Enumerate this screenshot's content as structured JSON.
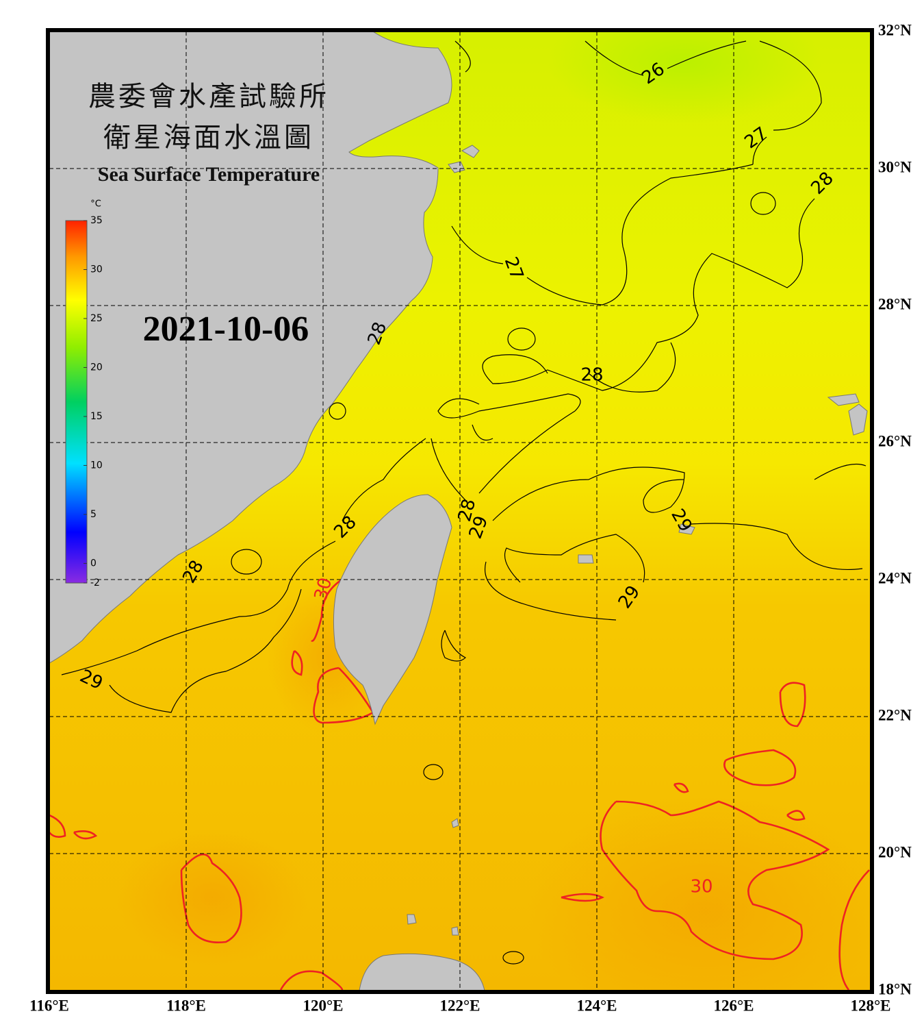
{
  "title": {
    "line1": "農委會水產試驗所",
    "line2": "衛星海面水溫圖",
    "english": "Sea Surface Temperature"
  },
  "date": "2021-10-06",
  "colorbar": {
    "unit": "°C",
    "range": [
      -2,
      35
    ],
    "ticks": [
      -2,
      0,
      5,
      10,
      15,
      20,
      25,
      30,
      35
    ]
  },
  "map": {
    "lon_range": [
      116,
      128
    ],
    "lat_range": [
      18,
      32
    ],
    "lon_ticks": [
      {
        "value": 116,
        "label": "116°E"
      },
      {
        "value": 118,
        "label": "118°E"
      },
      {
        "value": 120,
        "label": "120°E"
      },
      {
        "value": 122,
        "label": "122°E"
      },
      {
        "value": 124,
        "label": "124°E"
      },
      {
        "value": 126,
        "label": "126°E"
      },
      {
        "value": 128,
        "label": "128°E"
      }
    ],
    "lat_ticks": [
      {
        "value": 18,
        "label": "18°N"
      },
      {
        "value": 20,
        "label": "20°N"
      },
      {
        "value": 22,
        "label": "22°N"
      },
      {
        "value": 24,
        "label": "24°N"
      },
      {
        "value": 26,
        "label": "26°N"
      },
      {
        "value": 28,
        "label": "28°N"
      },
      {
        "value": 30,
        "label": "30°N"
      },
      {
        "value": 32,
        "label": "32°N"
      }
    ],
    "contour_labels": [
      26,
      27,
      27,
      28,
      28,
      28,
      28,
      28,
      28,
      29,
      29,
      29,
      29,
      30,
      30
    ]
  }
}
